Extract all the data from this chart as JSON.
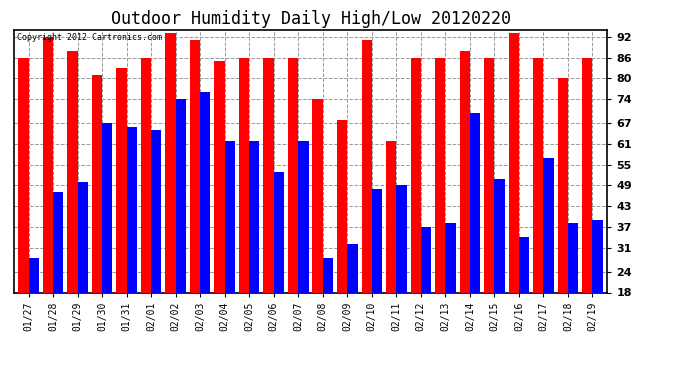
{
  "title": "Outdoor Humidity Daily High/Low 20120220",
  "copyright": "Copyright 2012 Cartronics.com",
  "dates": [
    "01/27",
    "01/28",
    "01/29",
    "01/30",
    "01/31",
    "02/01",
    "02/02",
    "02/03",
    "02/04",
    "02/05",
    "02/06",
    "02/07",
    "02/08",
    "02/09",
    "02/10",
    "02/11",
    "02/12",
    "02/13",
    "02/14",
    "02/15",
    "02/16",
    "02/17",
    "02/18",
    "02/19"
  ],
  "highs": [
    86,
    92,
    88,
    81,
    83,
    86,
    93,
    91,
    85,
    86,
    86,
    86,
    74,
    68,
    91,
    62,
    86,
    86,
    88,
    86,
    93,
    86,
    80,
    86
  ],
  "lows": [
    28,
    47,
    50,
    67,
    66,
    65,
    74,
    76,
    62,
    62,
    53,
    62,
    28,
    32,
    48,
    49,
    37,
    38,
    70,
    51,
    34,
    57,
    38,
    39
  ],
  "high_color": "#ff0000",
  "low_color": "#0000ff",
  "bg_color": "#ffffff",
  "grid_color": "#999999",
  "yticks": [
    18,
    24,
    31,
    37,
    43,
    49,
    55,
    61,
    67,
    74,
    80,
    86,
    92
  ],
  "ymin": 18,
  "ymax": 94,
  "title_fontsize": 12,
  "bar_width": 0.42
}
